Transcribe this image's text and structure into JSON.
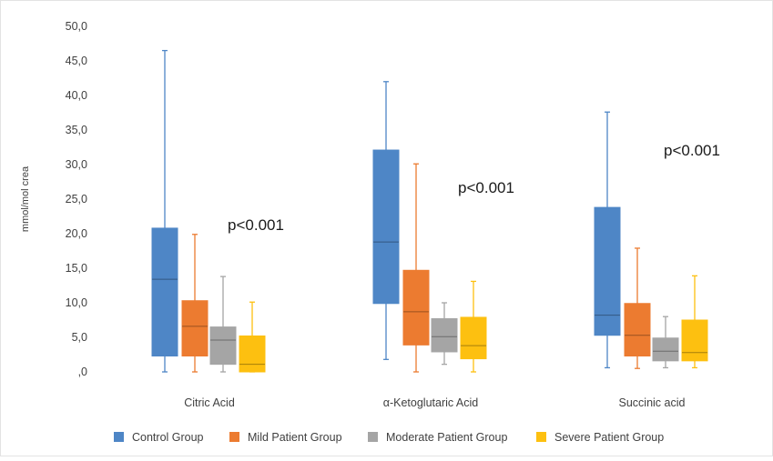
{
  "chart_data": {
    "type": "box",
    "ylabel": "mmol/mol crea",
    "ylim": [
      0,
      50
    ],
    "ytick_values": [
      0,
      5,
      10,
      15,
      20,
      25,
      30,
      35,
      40,
      45,
      50
    ],
    "ytick_labels": [
      ",0",
      "5,0",
      "10,0",
      "15,0",
      "20,0",
      "25,0",
      "30,0",
      "35,0",
      "40,0",
      "45,0",
      "50,0"
    ],
    "categories": [
      "Citric Acid",
      "α-Ketoglutaric Acid",
      "Succinic acid"
    ],
    "series": [
      {
        "name": "Control Group",
        "color": "#4e86c6",
        "boxes": [
          {
            "min": 0.0,
            "q1": 2.3,
            "median": 13.4,
            "q3": 20.8,
            "max": 46.5
          },
          {
            "min": 1.8,
            "q1": 9.9,
            "median": 18.8,
            "q3": 32.1,
            "max": 42.0
          },
          {
            "min": 0.6,
            "q1": 5.3,
            "median": 8.2,
            "q3": 23.8,
            "max": 37.6
          }
        ]
      },
      {
        "name": "Mild Patient Group",
        "color": "#ec7b30",
        "boxes": [
          {
            "min": 0.0,
            "q1": 2.3,
            "median": 6.6,
            "q3": 10.3,
            "max": 19.9
          },
          {
            "min": 0.0,
            "q1": 3.9,
            "median": 8.7,
            "q3": 14.7,
            "max": 30.1
          },
          {
            "min": 0.5,
            "q1": 2.3,
            "median": 5.3,
            "q3": 9.9,
            "max": 17.9
          }
        ]
      },
      {
        "name": "Moderate Patient Group",
        "color": "#a5a5a5",
        "boxes": [
          {
            "min": 0.0,
            "q1": 1.1,
            "median": 4.6,
            "q3": 6.5,
            "max": 13.8
          },
          {
            "min": 1.1,
            "q1": 2.9,
            "median": 5.1,
            "q3": 7.7,
            "max": 10.0
          },
          {
            "min": 0.6,
            "q1": 1.6,
            "median": 3.0,
            "q3": 4.9,
            "max": 8.0
          }
        ]
      },
      {
        "name": "Severe Patient Group",
        "color": "#fdc010",
        "boxes": [
          {
            "min": 0.0,
            "q1": 0.0,
            "median": 1.1,
            "q3": 5.2,
            "max": 10.1
          },
          {
            "min": 0.0,
            "q1": 1.9,
            "median": 3.8,
            "q3": 7.9,
            "max": 13.1
          },
          {
            "min": 0.6,
            "q1": 1.6,
            "median": 2.8,
            "q3": 7.5,
            "max": 13.9
          }
        ]
      }
    ],
    "annotations": [
      "p<0.001",
      "p<0.001",
      "p<0.001"
    ],
    "legend_position": "bottom",
    "grid": false
  }
}
